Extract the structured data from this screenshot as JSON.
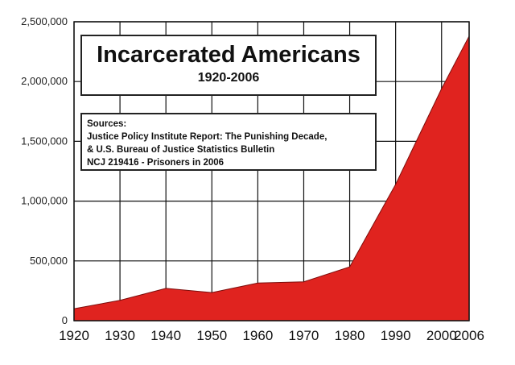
{
  "title": "Incarcerated Americans",
  "subtitle": "1920-2006",
  "sources": {
    "heading": "Sources:",
    "lines": [
      "Justice Policy Institute Report: The Punishing Decade,",
      "& U.S. Bureau of Justice Statistics Bulletin",
      "NCJ 219416 - Prisoners in 2006"
    ]
  },
  "chart_data": {
    "type": "area",
    "title": "Incarcerated Americans",
    "subtitle": "1920-2006",
    "x": [
      1920,
      1930,
      1940,
      1950,
      1960,
      1970,
      1980,
      1990,
      2000,
      2006
    ],
    "series": [
      {
        "values": [
          100000,
          170000,
          270000,
          235000,
          315000,
          325000,
          450000,
          1140000,
          1940000,
          2380000
        ]
      }
    ],
    "x_ticks": [
      "1920",
      "1930",
      "1940",
      "1950",
      "1960",
      "1970",
      "1980",
      "1990",
      "2000",
      "2006"
    ],
    "y_ticks": [
      "0",
      "500,000",
      "1,000,000",
      "1,500,000",
      "2,000,000",
      "2,500,000"
    ],
    "xlim": [
      1920,
      2006
    ],
    "ylim": [
      0,
      2500000
    ],
    "grid": true,
    "fill_color": "#e0231f"
  }
}
